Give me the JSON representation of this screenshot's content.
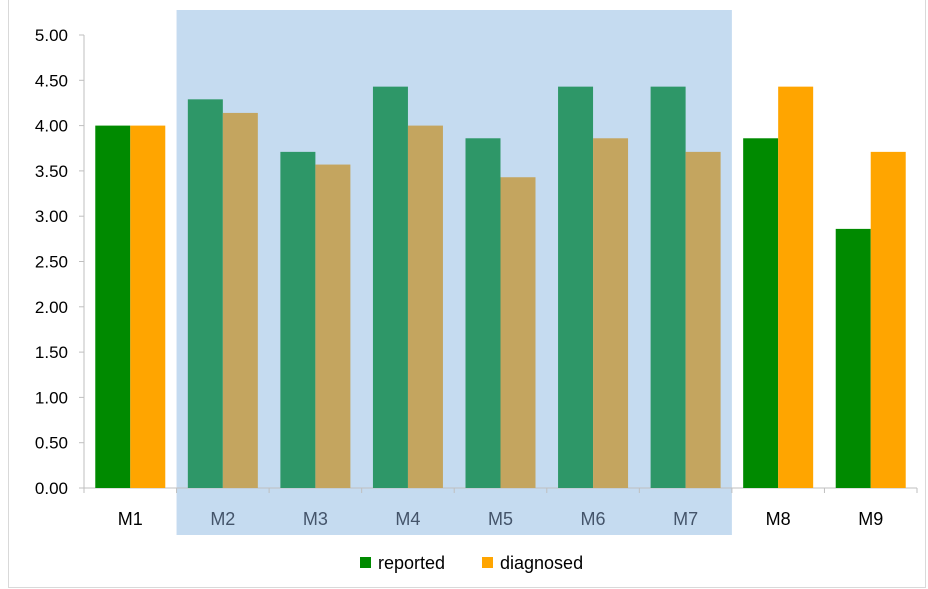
{
  "chart_data": {
    "type": "bar",
    "categories": [
      "M1",
      "M2",
      "M3",
      "M4",
      "M5",
      "M6",
      "M7",
      "M8",
      "M9"
    ],
    "series": [
      {
        "name": "reported",
        "values": [
          4.0,
          4.29,
          3.71,
          4.43,
          3.86,
          4.43,
          4.43,
          3.86,
          2.86
        ]
      },
      {
        "name": "diagnosed",
        "values": [
          4.0,
          4.14,
          3.57,
          4.0,
          3.43,
          3.86,
          3.71,
          4.43,
          3.71
        ]
      }
    ],
    "y_ticks": [
      "0.00",
      "0.50",
      "1.00",
      "1.50",
      "2.00",
      "2.50",
      "3.00",
      "3.50",
      "4.00",
      "4.50",
      "5.00"
    ],
    "ylim": [
      0,
      5
    ],
    "title": "",
    "xlabel": "",
    "ylabel": "",
    "legend_position": "bottom",
    "highlighted_categories": [
      "M2",
      "M3",
      "M4",
      "M5",
      "M6",
      "M7"
    ],
    "colors": {
      "reported": "#008a00",
      "diagnosed": "#ffa500",
      "reported_highlighted": "#2e9768",
      "diagnosed_highlighted": "#c4a55f",
      "highlight_band": "#c5dbf0",
      "axis": "#bfbfbf"
    },
    "grid": false
  }
}
